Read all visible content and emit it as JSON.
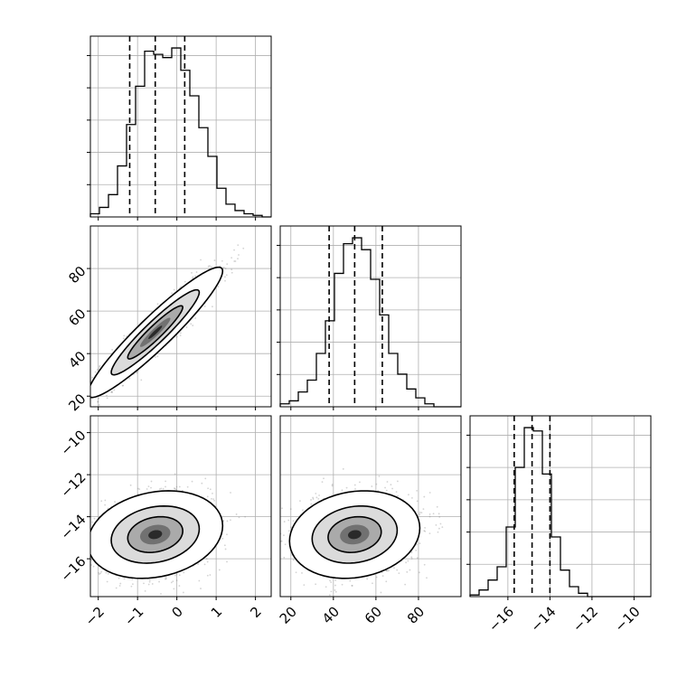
{
  "chart_data": {
    "type": "corner",
    "parameters": [
      {
        "name": "",
        "range": [
          -2.2,
          2.4
        ],
        "quantiles": [
          -1.2,
          -0.55,
          0.2
        ],
        "ticks": [
          -2,
          -1,
          0,
          1,
          2
        ],
        "tick_labels": [
          "−2",
          "−1",
          "0",
          "1",
          "2"
        ]
      },
      {
        "name": "",
        "range": [
          15,
          100
        ],
        "quantiles": [
          38,
          50,
          63
        ],
        "ticks": [
          20,
          40,
          60,
          80
        ],
        "tick_labels": [
          "20",
          "40",
          "60",
          "80"
        ]
      },
      {
        "name": "",
        "range": [
          -17.8,
          -9.2
        ],
        "quantiles": [
          -15.7,
          -14.85,
          -14.0
        ],
        "ticks": [
          -16,
          -14,
          -12,
          -10
        ],
        "tick_labels": [
          "−16",
          "−14",
          "−12",
          "−10"
        ]
      }
    ],
    "marginals": [
      {
        "param": 0,
        "bin_start": -2.2,
        "bin_width": 0.23,
        "counts": [
          1,
          3,
          7,
          16,
          29,
          41,
          52,
          51,
          50,
          53,
          46,
          38,
          28,
          19,
          9,
          4,
          2,
          1,
          0.5,
          0
        ]
      },
      {
        "param": 1,
        "bin_start": 15,
        "bin_width": 4.25,
        "counts": [
          1,
          2,
          5,
          9,
          18,
          29,
          45,
          55,
          57,
          53,
          43,
          31,
          18,
          11,
          6,
          3,
          1,
          0,
          0,
          0
        ]
      },
      {
        "param": 2,
        "bin_start": -17.8,
        "bin_width": 0.43,
        "counts": [
          0.5,
          2,
          5,
          9,
          21,
          39,
          51,
          50,
          37,
          18,
          8,
          3,
          1,
          0,
          0,
          0,
          0,
          0,
          0,
          0
        ]
      }
    ],
    "pairs": [
      {
        "x_param": 0,
        "y_param": 1,
        "correlation": 0.94,
        "contours": [
          {
            "level": 0.39,
            "points": [
              [
                -1.3,
                42
              ],
              [
                -0.55,
                50
              ],
              [
                0.2,
                58
              ],
              [
                -0.6,
                50
              ]
            ]
          },
          {
            "level": 0.86,
            "points": [
              [
                -1.55,
                36
              ],
              [
                -0.55,
                50
              ],
              [
                0.55,
                63
              ],
              [
                -0.55,
                50
              ]
            ]
          },
          {
            "level": 0.99,
            "points": [
              [
                -1.8,
                27
              ],
              [
                -0.55,
                50
              ],
              [
                0.85,
                73
              ],
              [
                -0.55,
                50
              ]
            ]
          }
        ]
      },
      {
        "x_param": 0,
        "y_param": 2,
        "correlation": 0.2,
        "contours": []
      },
      {
        "x_param": 1,
        "y_param": 2,
        "correlation": 0.15,
        "contours": []
      }
    ],
    "fill_colors": [
      "#ffffff",
      "#d9d9d9",
      "#a8a8a8",
      "#6e6e6e",
      "#2a2a2a"
    ],
    "grid": true,
    "point_color": "#808080",
    "line_color": "#000000"
  }
}
